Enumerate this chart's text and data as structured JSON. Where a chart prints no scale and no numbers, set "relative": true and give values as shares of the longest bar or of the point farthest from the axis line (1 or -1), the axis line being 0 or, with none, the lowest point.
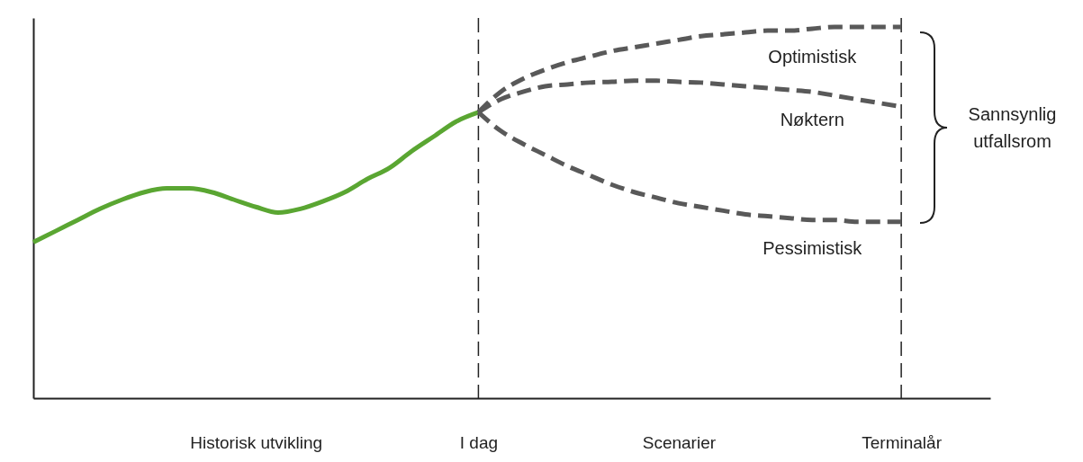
{
  "chart_data": {
    "type": "line",
    "relative": true,
    "legend": false,
    "categories": [
      null,
      null,
      null,
      null,
      null,
      null,
      null,
      null,
      null,
      null,
      "Historisk utvikling",
      null,
      null,
      null,
      null,
      null,
      null,
      null,
      null,
      null,
      "I dag",
      null,
      null,
      null,
      null,
      null,
      null,
      null,
      null,
      "Scenarier",
      null,
      null,
      null,
      null,
      null,
      null,
      null,
      null,
      null,
      "Terminalår"
    ],
    "series": [
      {
        "color": "#5aa632",
        "line_style": "solid",
        "values": [
          0.42,
          0.45,
          0.48,
          0.51,
          0.535,
          0.555,
          0.565,
          0.565,
          0.555,
          0.535,
          0.515,
          0.5,
          0.51,
          0.53,
          0.555,
          0.59,
          0.62,
          0.665,
          0.705,
          0.745,
          0.77,
          null,
          null,
          null,
          null,
          null,
          null,
          null,
          null,
          null,
          null,
          null,
          null,
          null,
          null,
          null,
          null,
          null,
          null,
          null
        ]
      },
      {
        "name": "Optimistisk",
        "color": "#595959",
        "line_style": "dashed",
        "values": [
          null,
          null,
          null,
          null,
          null,
          null,
          null,
          null,
          null,
          null,
          null,
          null,
          null,
          null,
          null,
          null,
          null,
          null,
          null,
          null,
          0.77,
          0.825,
          0.86,
          0.885,
          0.905,
          0.92,
          0.935,
          0.945,
          0.955,
          0.965,
          0.975,
          0.98,
          0.985,
          0.99,
          0.99,
          0.995,
          1,
          1,
          1,
          1
        ]
      },
      {
        "name": "Nøktern",
        "color": "#595959",
        "line_style": "dashed",
        "values": [
          null,
          null,
          null,
          null,
          null,
          null,
          null,
          null,
          null,
          null,
          null,
          null,
          null,
          null,
          null,
          null,
          null,
          null,
          null,
          null,
          0.77,
          0.805,
          0.825,
          0.84,
          0.845,
          0.85,
          0.852,
          0.855,
          0.855,
          0.852,
          0.85,
          0.845,
          0.84,
          0.835,
          0.83,
          0.825,
          0.815,
          0.805,
          0.795,
          0.785
        ]
      },
      {
        "name": "Pessimistisk",
        "color": "#595959",
        "line_style": "dashed",
        "values": [
          null,
          null,
          null,
          null,
          null,
          null,
          null,
          null,
          null,
          null,
          null,
          null,
          null,
          null,
          null,
          null,
          null,
          null,
          null,
          null,
          0.77,
          0.72,
          0.685,
          0.655,
          0.625,
          0.6,
          0.575,
          0.555,
          0.54,
          0.525,
          0.515,
          0.505,
          0.495,
          0.49,
          0.485,
          0.48,
          0.48,
          0.475,
          0.475,
          0.475
        ]
      }
    ],
    "ref_lines": [
      {
        "axis": "x",
        "value": "I dag",
        "line_style": "dashed",
        "color": "#222222"
      },
      {
        "axis": "x",
        "value": "Terminalår",
        "line_style": "dashed",
        "color": "#222222"
      }
    ],
    "annotations": [
      "Sannsynlig utfallsrom"
    ]
  }
}
